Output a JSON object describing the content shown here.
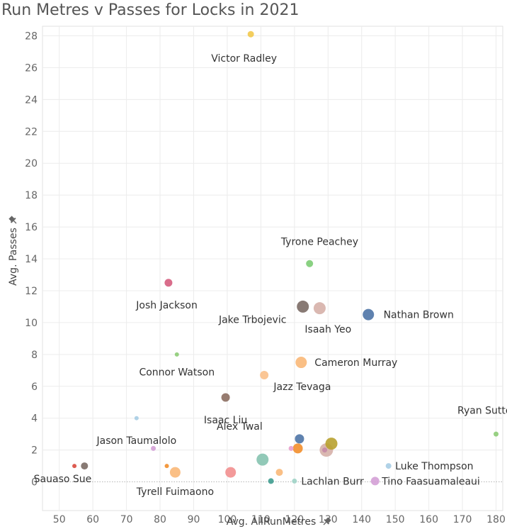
{
  "title": "Run Metres v Passes for Locks in 2021",
  "chart_data": {
    "type": "scatter",
    "title": "Run Metres v Passes for Locks in 2021",
    "xlabel": "Avg. AllRunMetres",
    "ylabel": "Avg. Passes",
    "xlim": [
      45,
      182
    ],
    "ylim": [
      -1.8,
      28.6
    ],
    "xticks": [
      50,
      60,
      70,
      80,
      90,
      100,
      110,
      120,
      130,
      140,
      150,
      160,
      170,
      180
    ],
    "yticks": [
      0,
      2,
      4,
      6,
      8,
      10,
      12,
      14,
      16,
      18,
      20,
      22,
      24,
      26,
      28
    ],
    "grid": true,
    "points": [
      {
        "x": 107.0,
        "y": 28.1,
        "r": 4.5,
        "color": "#f2c94c",
        "label": "Victor Radley",
        "lx": 105.0,
        "ly": 26.6,
        "anchor": "middle"
      },
      {
        "x": 124.5,
        "y": 13.7,
        "r": 5,
        "color": "#7dcc74",
        "label": "Tyrone Peachey",
        "lx": 127.5,
        "ly": 15.1,
        "anchor": "middle"
      },
      {
        "x": 82.5,
        "y": 12.5,
        "r": 5.5,
        "color": "#d55d7e",
        "label": "Josh Jackson",
        "lx": 82.0,
        "ly": 11.1,
        "anchor": "middle"
      },
      {
        "x": 122.5,
        "y": 11.0,
        "r": 8.5,
        "color": "#7b6b65",
        "label": "Jake Trbojevic",
        "lx": 117.6,
        "ly": 10.2,
        "anchor": "end"
      },
      {
        "x": 127.5,
        "y": 10.9,
        "r": 8.5,
        "color": "#d6b0a8",
        "label": "Isaah Yeo",
        "lx": 130.0,
        "ly": 9.6,
        "anchor": "middle"
      },
      {
        "x": 142.0,
        "y": 10.5,
        "r": 8,
        "color": "#4e74a6",
        "label": "Nathan Brown",
        "lx": 146.5,
        "ly": 10.5,
        "anchor": "start"
      },
      {
        "x": 85.0,
        "y": 8.0,
        "r": 3,
        "color": "#8dcc75",
        "label": "Connor Watson",
        "lx": 85.0,
        "ly": 6.9,
        "anchor": "middle"
      },
      {
        "x": 122.0,
        "y": 7.5,
        "r": 8,
        "color": "#f9b878",
        "label": "Cameron Murray",
        "lx": 126.0,
        "ly": 7.5,
        "anchor": "start"
      },
      {
        "x": 111.0,
        "y": 6.7,
        "r": 6,
        "color": "#f9c08a",
        "label": "Jazz Tevaga",
        "lx": 113.8,
        "ly": 6.0,
        "anchor": "start"
      },
      {
        "x": 99.5,
        "y": 5.3,
        "r": 6,
        "color": "#8c6e61",
        "label": "Isaac Liu",
        "lx": 99.5,
        "ly": 3.9,
        "anchor": "middle"
      },
      {
        "x": 73.0,
        "y": 4.0,
        "r": 3,
        "color": "#a7cde4",
        "label": "Jason Taumalolo",
        "lx": 73.0,
        "ly": 2.6,
        "anchor": "middle"
      },
      {
        "x": 180.0,
        "y": 3.0,
        "r": 3.5,
        "color": "#8dcc75",
        "label": "Ryan Sutton",
        "lx": 177.5,
        "ly": 4.5,
        "anchor": "middle"
      },
      {
        "x": 121.5,
        "y": 2.7,
        "r": 6.5,
        "color": "#4e74a6",
        "label": "",
        "lx": 0,
        "ly": 0,
        "anchor": "start"
      },
      {
        "x": 129.5,
        "y": 2.0,
        "r": 9.5,
        "color": "#d6b0a8",
        "label": "",
        "lx": 0,
        "ly": 0,
        "anchor": "start"
      },
      {
        "x": 131.0,
        "y": 2.4,
        "r": 8.5,
        "color": "#b8a12f",
        "label": "",
        "lx": 0,
        "ly": 0,
        "anchor": "start"
      },
      {
        "x": 129.0,
        "y": 2.0,
        "r": 3.5,
        "color": "#c48aa6",
        "label": "",
        "lx": 0,
        "ly": 0,
        "anchor": "start"
      },
      {
        "x": 121.0,
        "y": 2.1,
        "r": 7,
        "color": "#f28e2b",
        "label": "Alex Twal",
        "lx": 110.5,
        "ly": 3.5,
        "anchor": "end"
      },
      {
        "x": 119.0,
        "y": 2.1,
        "r": 3.5,
        "color": "#e79fcb",
        "label": "",
        "lx": 0,
        "ly": 0,
        "anchor": "start"
      },
      {
        "x": 78.0,
        "y": 2.1,
        "r": 3.5,
        "color": "#d4a0d6",
        "label": "",
        "lx": 0,
        "ly": 0,
        "anchor": "start"
      },
      {
        "x": 110.5,
        "y": 1.4,
        "r": 8.5,
        "color": "#86c3b0",
        "label": "",
        "lx": 0,
        "ly": 0,
        "anchor": "start"
      },
      {
        "x": 148.0,
        "y": 1.0,
        "r": 4,
        "color": "#a7cde4",
        "label": "Luke Thompson",
        "lx": 150.0,
        "ly": 1.0,
        "anchor": "start"
      },
      {
        "x": 54.5,
        "y": 1.0,
        "r": 3,
        "color": "#d94a3e",
        "label": "Sauaso Sue",
        "lx": 51.0,
        "ly": 0.2,
        "anchor": "middle"
      },
      {
        "x": 57.5,
        "y": 1.0,
        "r": 5,
        "color": "#7b6b65",
        "label": "",
        "lx": 0,
        "ly": 0,
        "anchor": "start"
      },
      {
        "x": 82.0,
        "y": 1.0,
        "r": 3,
        "color": "#f28e2b",
        "label": "",
        "lx": 0,
        "ly": 0,
        "anchor": "start"
      },
      {
        "x": 84.5,
        "y": 0.6,
        "r": 7.5,
        "color": "#f9b878",
        "label": "Tyrell Fuimaono",
        "lx": 84.5,
        "ly": -0.6,
        "anchor": "middle"
      },
      {
        "x": 101.0,
        "y": 0.6,
        "r": 7.5,
        "color": "#f28f8f",
        "label": "",
        "lx": 0,
        "ly": 0,
        "anchor": "start"
      },
      {
        "x": 115.5,
        "y": 0.6,
        "r": 5,
        "color": "#f9b878",
        "label": "",
        "lx": 0,
        "ly": 0,
        "anchor": "start"
      },
      {
        "x": 113.0,
        "y": 0.05,
        "r": 4,
        "color": "#3e9c8f",
        "label": "",
        "lx": 0,
        "ly": 0,
        "anchor": "start"
      },
      {
        "x": 120.0,
        "y": 0.05,
        "r": 3.5,
        "color": "#9fd3c6",
        "label": "Lachlan Burr",
        "lx": 122.0,
        "ly": 0.05,
        "anchor": "start"
      },
      {
        "x": 144.0,
        "y": 0.05,
        "r": 6,
        "color": "#d4a0d6",
        "label": "Tino Faasuamaleaui",
        "lx": 146.0,
        "ly": 0.05,
        "anchor": "start"
      }
    ]
  }
}
